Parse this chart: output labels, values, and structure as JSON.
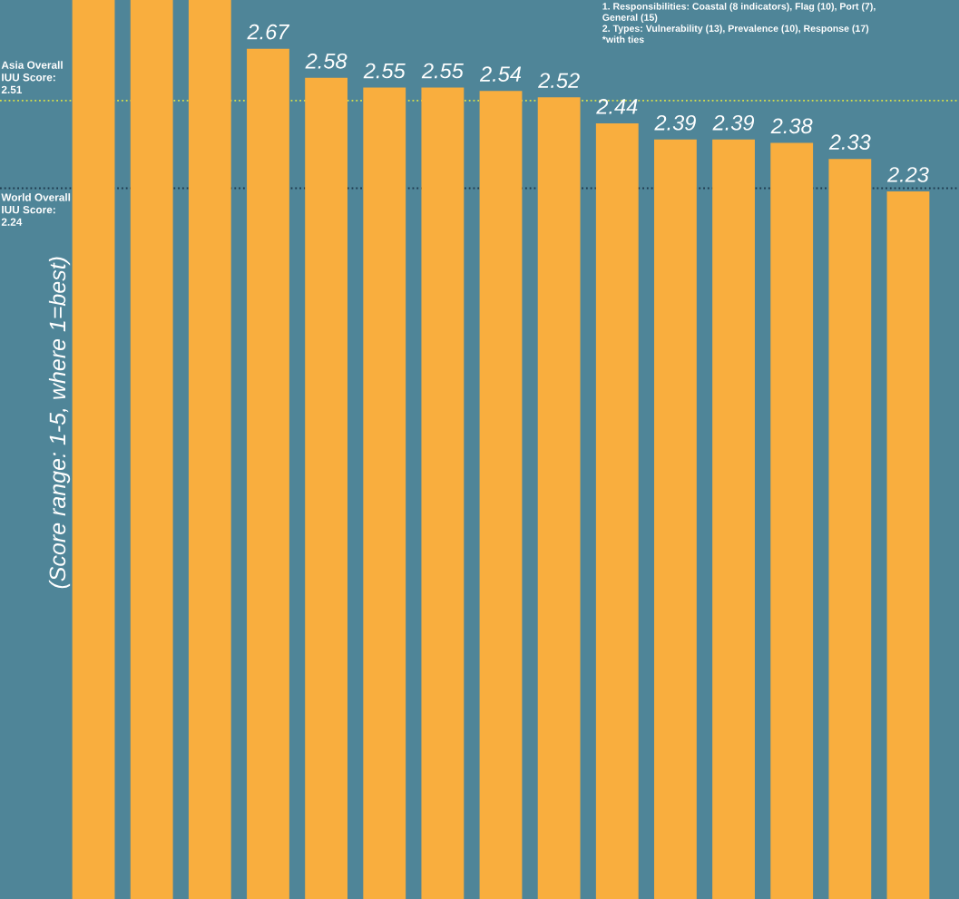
{
  "chart_data": {
    "type": "bar",
    "ylabel": "(Score range: 1-5, where 1=best)",
    "categories": [
      null,
      null,
      null,
      null,
      null,
      null,
      null,
      null,
      null,
      null,
      null,
      null,
      null,
      null,
      null
    ],
    "values": [
      2.82,
      2.82,
      2.82,
      2.67,
      2.58,
      2.55,
      2.55,
      2.54,
      2.52,
      2.44,
      2.39,
      2.39,
      2.38,
      2.33,
      2.23
    ],
    "value_labels": [
      null,
      null,
      null,
      "2.67",
      "2.58",
      "2.55",
      "2.55",
      "2.54",
      "2.52",
      "2.44",
      "2.39",
      "2.39",
      "2.38",
      "2.33",
      "2.23"
    ],
    "color": "#f9ae3e",
    "ylim": [
      0.05,
      2.82
    ],
    "grid": false,
    "ref_lines": [
      {
        "axis": "y",
        "value": 2.51,
        "label": "Asia Overall\nIUU Score:\n2.51",
        "color": "#d8e04a",
        "line_style": "dotted"
      },
      {
        "axis": "y",
        "value": 2.24,
        "label": "World Overall\nIUU Score:\n2.24",
        "color": "#1e3a4e",
        "line_style": "dotted"
      }
    ],
    "annotations": [
      "1. Responsibilities: Coastal (8 indicators), Flag (10), Port (7),\nGeneral (15)\n2. Types: Vulnerability (13), Prevalence (10), Response (17)\n*with ties"
    ]
  }
}
